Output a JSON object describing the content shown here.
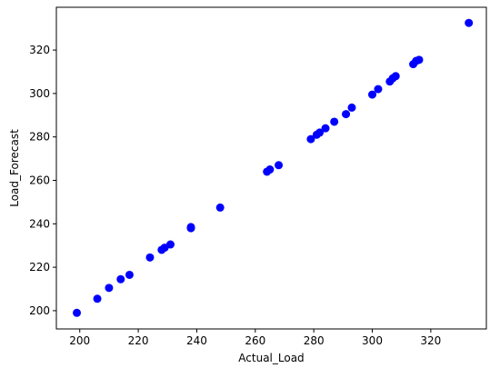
{
  "chart_data": {
    "type": "scatter",
    "xlabel": "Actual_Load",
    "ylabel": "Load_Forecast",
    "color": "#0000ff",
    "x": [
      199,
      206,
      210,
      214,
      217,
      224,
      228,
      229,
      231,
      238,
      238,
      248,
      264,
      265,
      268,
      279,
      281,
      282,
      284,
      287,
      291,
      293,
      300,
      302,
      306,
      307,
      308,
      314,
      315,
      316,
      333
    ],
    "values": [
      199,
      205.5,
      210.5,
      214.5,
      216.5,
      224.5,
      228,
      229,
      230.5,
      238,
      238.5,
      247.5,
      264,
      265,
      267,
      279,
      281,
      282,
      284,
      287,
      290.5,
      293.5,
      299.5,
      302,
      305.5,
      307,
      308,
      313.5,
      315,
      315.5,
      332.5
    ],
    "xlim": [
      192,
      339
    ],
    "xticks": [
      200,
      220,
      240,
      260,
      280,
      300,
      320
    ],
    "ylim": [
      191.6,
      339.7
    ],
    "yticks": [
      200,
      220,
      240,
      260,
      280,
      300,
      320
    ]
  }
}
